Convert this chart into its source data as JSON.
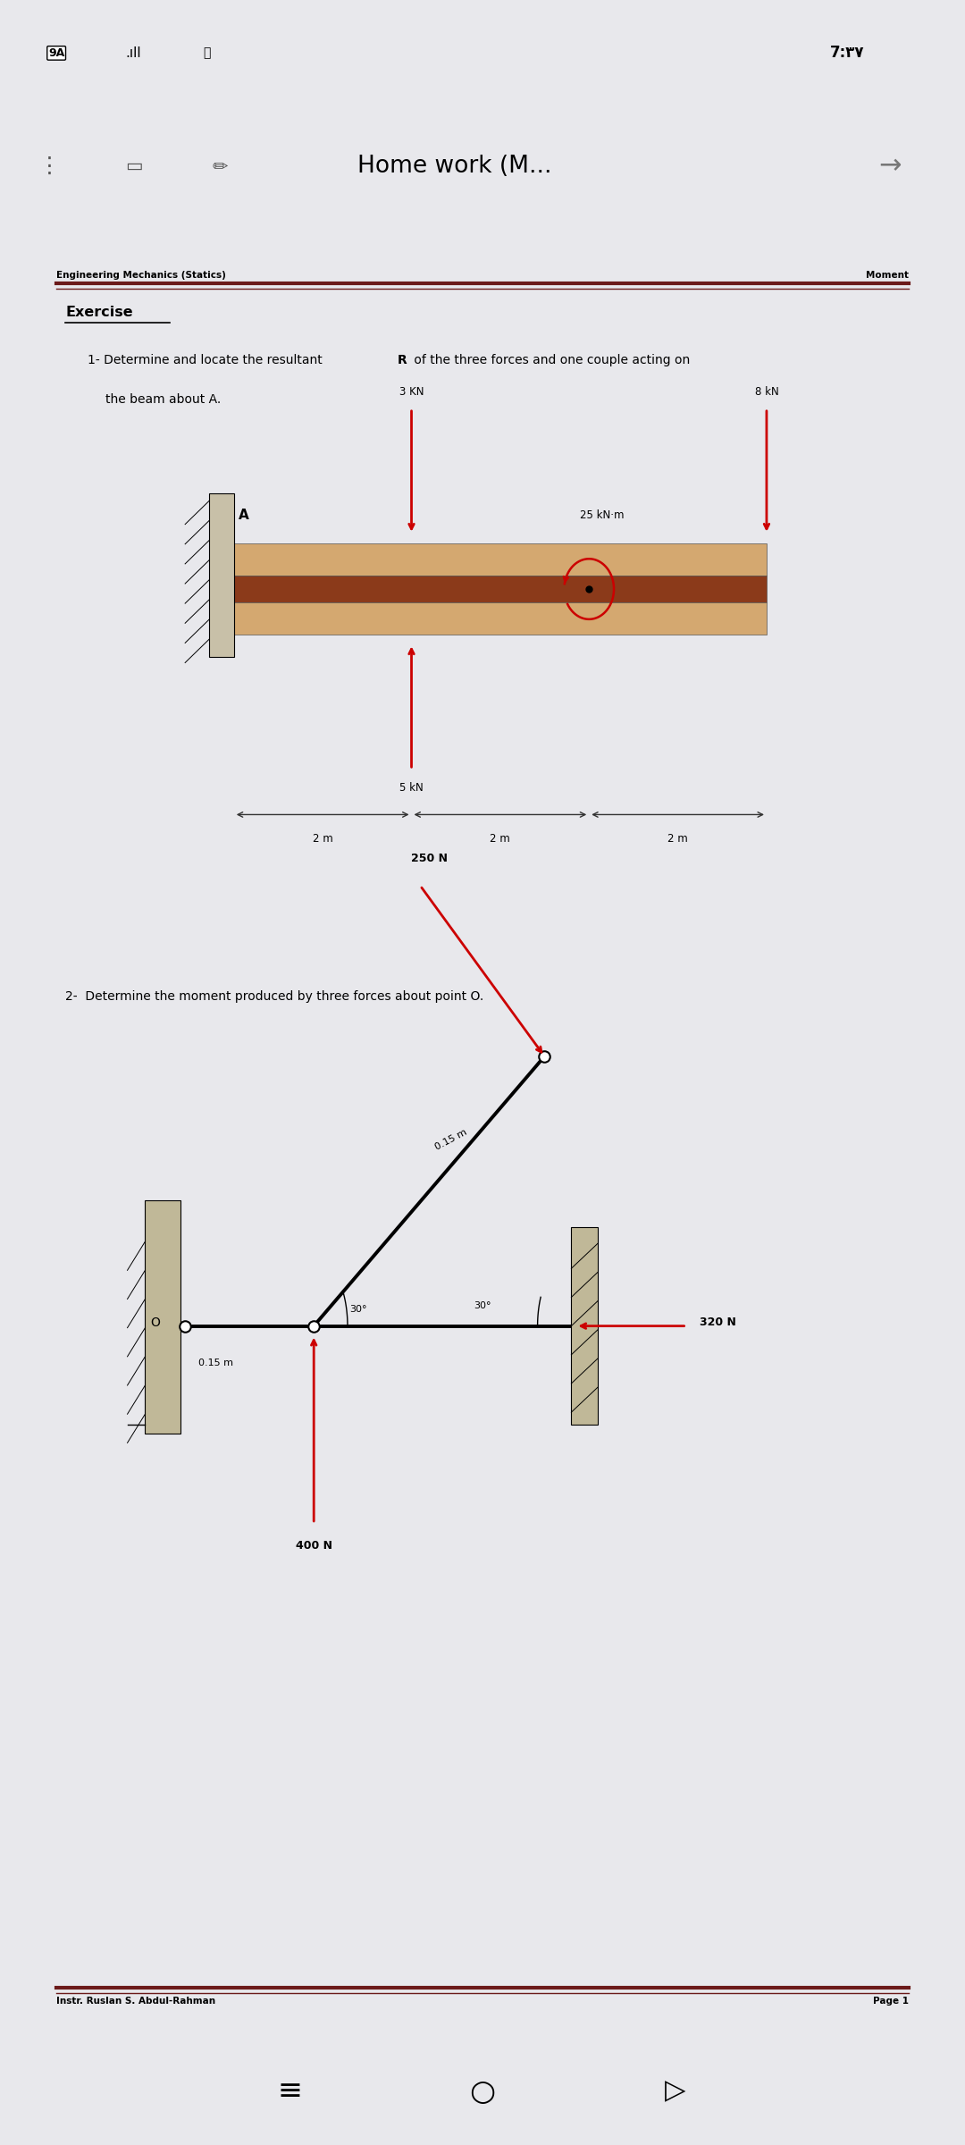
{
  "bg_color": "#e8e8ec",
  "page_bg": "#ffffff",
  "header_text_left": "Engineering Mechanics (Statics)",
  "header_text_right": "Moment",
  "header_line_color": "#6b1a1a",
  "section_title": "Exercise",
  "q1_line1_pre": "1- Determine and locate the resultant ",
  "q1_bold": "R",
  "q1_line1_post": " of the three forces and one couple acting on",
  "q1_line2": "    the beam about A.",
  "q2_text": "2-  Determine the moment produced by three forces about point O.",
  "footer_left": "Instr. Ruslan S. Abdul-Rahman",
  "footer_right": "Page 1",
  "beam_color_top": "#d4a870",
  "beam_color_mid": "#8b3a1a",
  "beam_color_bot": "#d4a870",
  "force_arrow_color": "#cc0000",
  "dim_line_color": "#333333",
  "wall_color": "#b0b0a0"
}
